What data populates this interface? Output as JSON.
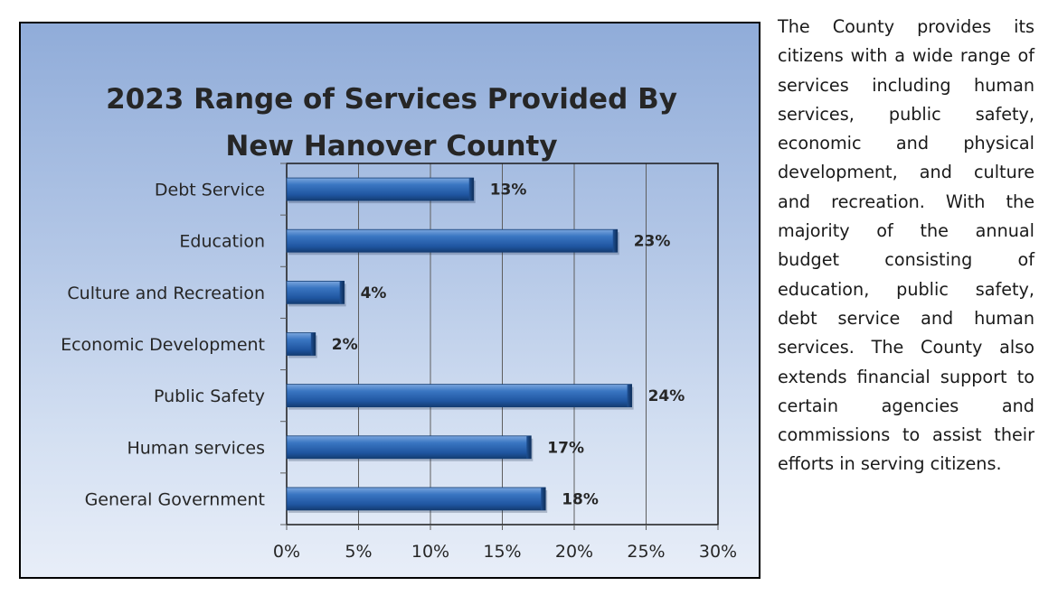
{
  "chart_data": {
    "type": "bar",
    "orientation": "horizontal",
    "title": "2023 Range of Services Provided By New Hanover County",
    "title_lines": [
      "2023 Range of Services Provided By",
      "New Hanover County"
    ],
    "categories": [
      "Debt Service",
      "Education",
      "Culture and Recreation",
      "Economic Development",
      "Public Safety",
      "Human services",
      "General Government"
    ],
    "values": [
      13,
      23,
      4,
      2,
      24,
      17,
      18
    ],
    "value_labels": [
      "13%",
      "23%",
      "4%",
      "2%",
      "24%",
      "17%",
      "18%"
    ],
    "xlim": [
      0,
      30
    ],
    "x_ticks": [
      0,
      5,
      10,
      15,
      20,
      25,
      30
    ],
    "x_tick_labels": [
      "0%",
      "5%",
      "10%",
      "15%",
      "20%",
      "25%",
      "30%"
    ],
    "xlabel": "",
    "ylabel": "",
    "grid": true,
    "legend": "none"
  },
  "description_text": "The County provides its citizens with a wide range of services including human services, public safety, economic and physical development, and culture and recreation. With the majority of the annual budget consisting of education, public safety, debt service and human services. The County also extends financial support to certain agencies and commissions to assist their efforts in serving citizens.",
  "colors": {
    "bar_dark": "#1a4a86",
    "bar_mid": "#2f6bb8",
    "bar_light": "#6d9bd8",
    "gridline": "#5a5a5a",
    "text": "#262626"
  }
}
